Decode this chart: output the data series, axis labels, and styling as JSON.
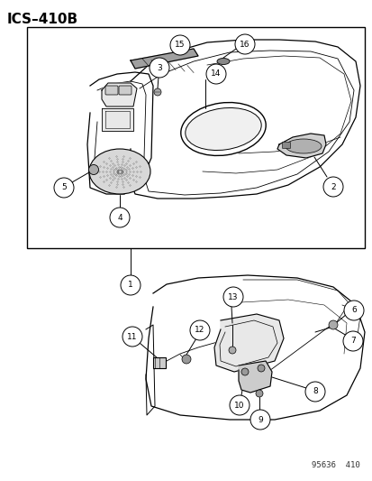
{
  "title": "ICS–410B",
  "footer": "95636  410",
  "bg_color": "#ffffff",
  "title_fontsize": 11,
  "footer_fontsize": 6.5,
  "callout_fontsize": 6.5,
  "callout_r": 0.013
}
